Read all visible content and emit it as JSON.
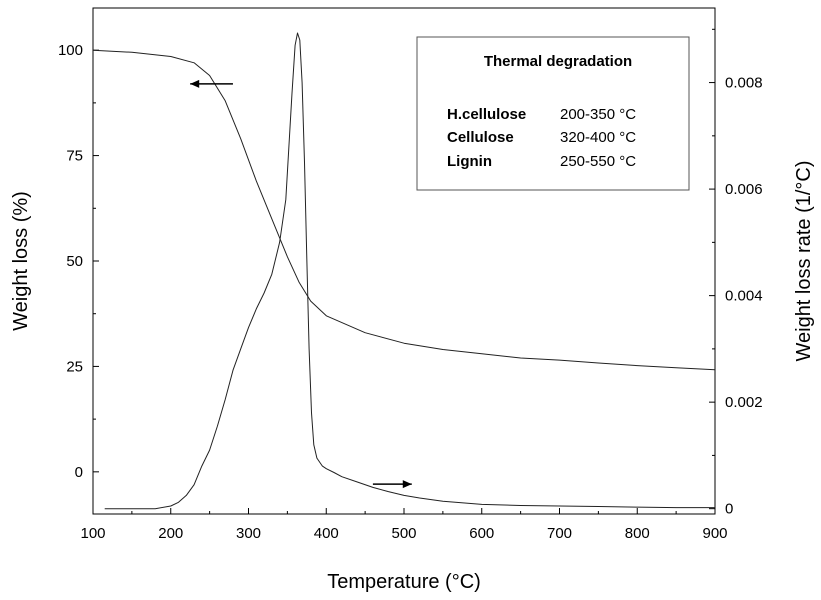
{
  "chart_data": {
    "type": "line",
    "title": "",
    "xlabel": "Temperature (°C)",
    "ylabel_left": "Weight loss (%)",
    "ylabel_right": "Weight loss rate (1/°C)",
    "xlim": [
      100,
      900
    ],
    "ylim_left": [
      -10,
      110
    ],
    "ylim_right": [
      -0.0001,
      0.0094
    ],
    "x_ticks": [
      100,
      200,
      300,
      400,
      500,
      600,
      700,
      800,
      900
    ],
    "y_left_ticks": [
      0,
      25,
      50,
      75,
      100
    ],
    "y_right_ticks": [
      0,
      0.002,
      0.004,
      0.006,
      0.008
    ],
    "y_right_tick_labels": [
      "0",
      "0.002",
      "0.004",
      "0.006",
      "0.008"
    ],
    "grid": false,
    "legend": {
      "placement": "top-right",
      "title": "Thermal degradation",
      "rows": [
        {
          "name": "H.cellulose",
          "range": "200-350 °C"
        },
        {
          "name": "Cellulose",
          "range": "320-400 °C"
        },
        {
          "name": "Lignin",
          "range": "250-550 °C"
        }
      ]
    },
    "series": [
      {
        "axis": "left",
        "x": [
          100,
          150,
          200,
          230,
          250,
          270,
          290,
          310,
          330,
          350,
          365,
          380,
          400,
          450,
          500,
          550,
          600,
          650,
          700,
          750,
          800,
          850,
          900
        ],
        "y": [
          100,
          99.5,
          98.5,
          97,
          94,
          88,
          79,
          69,
          60,
          51,
          45,
          40.5,
          37,
          33,
          30.5,
          29,
          28,
          27,
          26.5,
          25.8,
          25.2,
          24.7,
          24.2
        ]
      },
      {
        "axis": "right",
        "x": [
          115,
          150,
          180,
          200,
          210,
          220,
          230,
          240,
          250,
          260,
          270,
          280,
          290,
          300,
          310,
          320,
          330,
          340,
          348,
          352,
          356,
          360,
          363,
          366,
          369,
          372,
          375,
          378,
          381,
          384,
          388,
          395,
          400,
          410,
          420,
          440,
          460,
          480,
          500,
          520,
          550,
          600,
          650,
          700,
          750,
          800,
          850,
          900
        ],
        "y": [
          0.0,
          0.0,
          0.0,
          5e-05,
          0.00012,
          0.00025,
          0.00045,
          0.0008,
          0.0011,
          0.00155,
          0.00205,
          0.0026,
          0.003,
          0.0034,
          0.00375,
          0.00405,
          0.0044,
          0.005,
          0.0058,
          0.0068,
          0.0078,
          0.0087,
          0.00893,
          0.0088,
          0.008,
          0.0065,
          0.0047,
          0.003,
          0.0018,
          0.0012,
          0.00095,
          0.0008,
          0.00075,
          0.00068,
          0.0006,
          0.0005,
          0.0004,
          0.00032,
          0.00025,
          0.0002,
          0.00014,
          8e-05,
          6e-05,
          5e-05,
          4e-05,
          3e-05,
          2e-05,
          2e-05
        ]
      }
    ],
    "annotations": [
      {
        "type": "arrow",
        "direction": "left",
        "points_to_axis": "left",
        "x_from": 280,
        "x_to": 225,
        "y_left": 92
      },
      {
        "type": "arrow",
        "direction": "right",
        "points_to_axis": "right",
        "x_from": 460,
        "x_to": 510,
        "y_right": 0.00046
      }
    ]
  }
}
